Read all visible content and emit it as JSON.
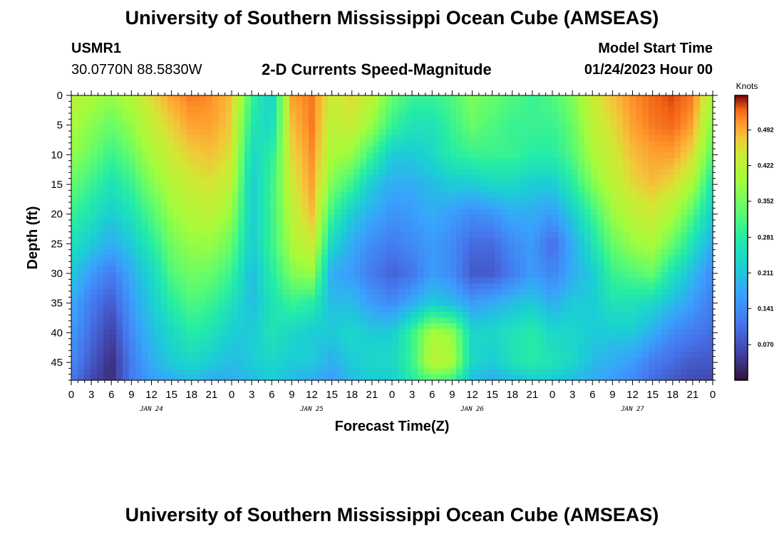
{
  "header": {
    "title_top": "University of Southern Mississippi Ocean Cube (AMSEAS)",
    "title_bottom": "University of Southern Mississippi Ocean Cube (AMSEAS)",
    "station_id": "USMR1",
    "station_coords": "30.0770N  88.5830W",
    "subtitle": "2-D Currents Speed-Magnitude",
    "model_start_label": "Model Start Time",
    "model_start_value": "01/24/2023 Hour 00"
  },
  "chart_data": {
    "type": "heatmap",
    "title": "2-D Currents Speed-Magnitude",
    "xlabel": "Forecast Time(Z)",
    "ylabel": "Depth (ft)",
    "x_range_hours": [
      0,
      96
    ],
    "y_range_ft": [
      0,
      48
    ],
    "x_tick_labels": [
      "0",
      "3",
      "6",
      "9",
      "12",
      "15",
      "18",
      "21",
      "0",
      "3",
      "6",
      "9",
      "12",
      "15",
      "18",
      "21",
      "0",
      "3",
      "6",
      "9",
      "12",
      "15",
      "18",
      "21",
      "0",
      "3",
      "6",
      "9",
      "12",
      "15",
      "18",
      "21",
      "0"
    ],
    "day_labels": [
      {
        "text": "JAN 24",
        "hour": 12
      },
      {
        "text": "JAN 25",
        "hour": 36
      },
      {
        "text": "JAN 26",
        "hour": 60
      },
      {
        "text": "JAN 27",
        "hour": 84
      }
    ],
    "y_ticks": [
      0,
      5,
      10,
      15,
      20,
      25,
      30,
      35,
      40,
      45
    ],
    "colorbar": {
      "title": "Knots",
      "range": [
        0.0,
        0.56
      ],
      "ticks": [
        "0.070",
        "0.141",
        "0.211",
        "0.281",
        "0.352",
        "0.422",
        "0.492"
      ],
      "colormap": "turbo"
    },
    "speed_grid_knots": {
      "hours": [
        0,
        3,
        6,
        9,
        12,
        15,
        18,
        21,
        24,
        27,
        30,
        33,
        36,
        39,
        42,
        45,
        48,
        51,
        54,
        57,
        60,
        63,
        66,
        69,
        72,
        75,
        78,
        81,
        84,
        87,
        90,
        93,
        96
      ],
      "depths_ft": [
        0,
        5,
        10,
        15,
        20,
        25,
        30,
        35,
        40,
        45,
        48
      ],
      "values": [
        [
          0.42,
          0.4,
          0.38,
          0.41,
          0.46,
          0.5,
          0.52,
          0.51,
          0.48,
          0.3,
          0.22,
          0.5,
          0.52,
          0.44,
          0.46,
          0.42,
          0.34,
          0.3,
          0.3,
          0.32,
          0.36,
          0.34,
          0.32,
          0.3,
          0.32,
          0.36,
          0.44,
          0.48,
          0.51,
          0.53,
          0.54,
          0.52,
          0.4
        ],
        [
          0.4,
          0.37,
          0.34,
          0.38,
          0.43,
          0.47,
          0.5,
          0.5,
          0.47,
          0.27,
          0.24,
          0.48,
          0.52,
          0.42,
          0.44,
          0.38,
          0.3,
          0.26,
          0.26,
          0.3,
          0.34,
          0.32,
          0.3,
          0.3,
          0.3,
          0.34,
          0.42,
          0.46,
          0.5,
          0.52,
          0.53,
          0.5,
          0.36
        ],
        [
          0.38,
          0.34,
          0.3,
          0.34,
          0.4,
          0.44,
          0.47,
          0.48,
          0.45,
          0.24,
          0.28,
          0.46,
          0.51,
          0.4,
          0.38,
          0.3,
          0.22,
          0.22,
          0.24,
          0.28,
          0.3,
          0.3,
          0.3,
          0.28,
          0.28,
          0.32,
          0.4,
          0.44,
          0.48,
          0.5,
          0.5,
          0.46,
          0.32
        ],
        [
          0.34,
          0.3,
          0.26,
          0.3,
          0.36,
          0.41,
          0.44,
          0.45,
          0.42,
          0.22,
          0.3,
          0.44,
          0.5,
          0.36,
          0.3,
          0.22,
          0.18,
          0.18,
          0.2,
          0.22,
          0.22,
          0.24,
          0.24,
          0.22,
          0.22,
          0.28,
          0.36,
          0.42,
          0.46,
          0.48,
          0.46,
          0.4,
          0.26
        ],
        [
          0.3,
          0.26,
          0.22,
          0.26,
          0.32,
          0.38,
          0.41,
          0.42,
          0.38,
          0.22,
          0.3,
          0.42,
          0.48,
          0.3,
          0.22,
          0.18,
          0.15,
          0.16,
          0.18,
          0.16,
          0.14,
          0.15,
          0.18,
          0.18,
          0.16,
          0.22,
          0.3,
          0.38,
          0.42,
          0.44,
          0.4,
          0.32,
          0.22
        ],
        [
          0.26,
          0.22,
          0.18,
          0.22,
          0.28,
          0.35,
          0.38,
          0.38,
          0.34,
          0.22,
          0.3,
          0.4,
          0.44,
          0.24,
          0.18,
          0.14,
          0.12,
          0.14,
          0.16,
          0.14,
          0.1,
          0.1,
          0.14,
          0.16,
          0.1,
          0.18,
          0.26,
          0.34,
          0.38,
          0.4,
          0.34,
          0.26,
          0.18
        ],
        [
          0.22,
          0.16,
          0.12,
          0.18,
          0.24,
          0.32,
          0.35,
          0.34,
          0.3,
          0.2,
          0.28,
          0.36,
          0.38,
          0.18,
          0.16,
          0.12,
          0.09,
          0.11,
          0.16,
          0.14,
          0.08,
          0.08,
          0.12,
          0.16,
          0.13,
          0.18,
          0.22,
          0.3,
          0.32,
          0.34,
          0.26,
          0.2,
          0.14
        ],
        [
          0.18,
          0.12,
          0.08,
          0.16,
          0.22,
          0.28,
          0.32,
          0.3,
          0.26,
          0.2,
          0.26,
          0.3,
          0.28,
          0.2,
          0.2,
          0.16,
          0.14,
          0.18,
          0.22,
          0.2,
          0.16,
          0.18,
          0.2,
          0.22,
          0.18,
          0.22,
          0.22,
          0.26,
          0.26,
          0.24,
          0.2,
          0.16,
          0.12
        ],
        [
          0.16,
          0.1,
          0.05,
          0.14,
          0.2,
          0.24,
          0.28,
          0.26,
          0.22,
          0.22,
          0.26,
          0.24,
          0.22,
          0.22,
          0.24,
          0.22,
          0.22,
          0.3,
          0.4,
          0.38,
          0.24,
          0.24,
          0.26,
          0.28,
          0.24,
          0.24,
          0.22,
          0.22,
          0.22,
          0.18,
          0.14,
          0.12,
          0.1
        ],
        [
          0.14,
          0.08,
          0.03,
          0.12,
          0.18,
          0.22,
          0.24,
          0.22,
          0.2,
          0.22,
          0.24,
          0.22,
          0.22,
          0.18,
          0.22,
          0.24,
          0.24,
          0.3,
          0.42,
          0.4,
          0.24,
          0.22,
          0.26,
          0.28,
          0.26,
          0.24,
          0.2,
          0.18,
          0.16,
          0.12,
          0.1,
          0.08,
          0.08
        ],
        [
          0.12,
          0.06,
          0.03,
          0.12,
          0.16,
          0.18,
          0.2,
          0.18,
          0.18,
          0.2,
          0.22,
          0.2,
          0.18,
          0.16,
          0.2,
          0.22,
          0.22,
          0.28,
          0.32,
          0.3,
          0.2,
          0.18,
          0.2,
          0.22,
          0.22,
          0.2,
          0.18,
          0.16,
          0.14,
          0.1,
          0.08,
          0.06,
          0.06
        ]
      ]
    }
  }
}
